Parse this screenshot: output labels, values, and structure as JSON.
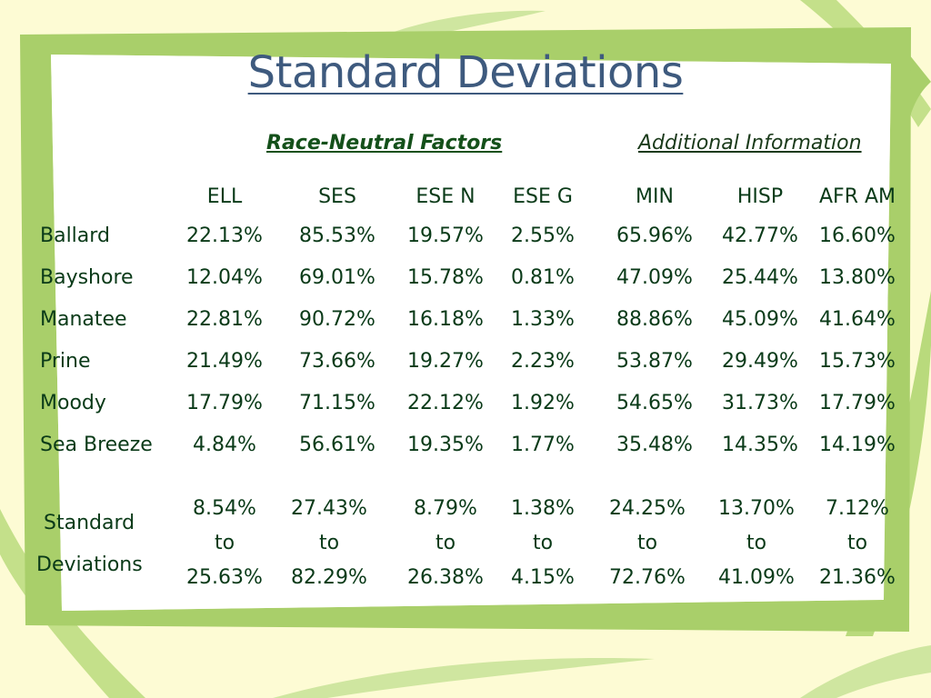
{
  "slide": {
    "title": "Standard Deviations",
    "group_headers": {
      "race_neutral": "Race-Neutral Factors",
      "additional": "Additional Information"
    },
    "columns": [
      "ELL",
      "SES",
      "ESE N",
      "ESE G",
      "MIN",
      "HISP",
      "AFR AM"
    ],
    "rows": [
      {
        "label": "Ballard",
        "values": [
          "22.13%",
          "85.53%",
          "19.57%",
          "2.55%",
          "65.96%",
          "42.77%",
          "16.60%"
        ]
      },
      {
        "label": "Bayshore",
        "values": [
          "12.04%",
          "69.01%",
          "15.78%",
          "0.81%",
          "47.09%",
          "25.44%",
          "13.80%"
        ]
      },
      {
        "label": "Manatee",
        "values": [
          "22.81%",
          "90.72%",
          "16.18%",
          "1.33%",
          "88.86%",
          "45.09%",
          "41.64%"
        ]
      },
      {
        "label": "Prine",
        "values": [
          "21.49%",
          "73.66%",
          "19.27%",
          "2.23%",
          "53.87%",
          "29.49%",
          "15.73%"
        ]
      },
      {
        "label": "Moody",
        "values": [
          "17.79%",
          "71.15%",
          "22.12%",
          "1.92%",
          "54.65%",
          "31.73%",
          "17.79%"
        ]
      },
      {
        "label": "Sea Breeze",
        "values": [
          "4.84%",
          "56.61%",
          "19.35%",
          "1.77%",
          "35.48%",
          "14.35%",
          "14.19%"
        ]
      }
    ],
    "std_label": [
      "Standard",
      "Deviations"
    ],
    "std_ranges": [
      {
        "low": "8.54%",
        "to": "to",
        "high": "25.63%"
      },
      {
        "low": "27.43%",
        "to": "to",
        "high": "82.29%"
      },
      {
        "low": "8.79%",
        "to": "to",
        "high": "26.38%"
      },
      {
        "low": "1.38%",
        "to": "to",
        "high": "4.15%"
      },
      {
        "low": "24.25%",
        "to": "to",
        "high": "72.76%"
      },
      {
        "low": "13.70%",
        "to": "to",
        "high": "41.09%"
      },
      {
        "low": "7.12%",
        "to": "to",
        "high": "21.36%"
      }
    ]
  },
  "colors": {
    "background": "#fdfbd4",
    "frame": "#a9cf6a",
    "leaf": "#c4e08a",
    "title": "#3e5a7e",
    "text": "#0a3a18"
  }
}
